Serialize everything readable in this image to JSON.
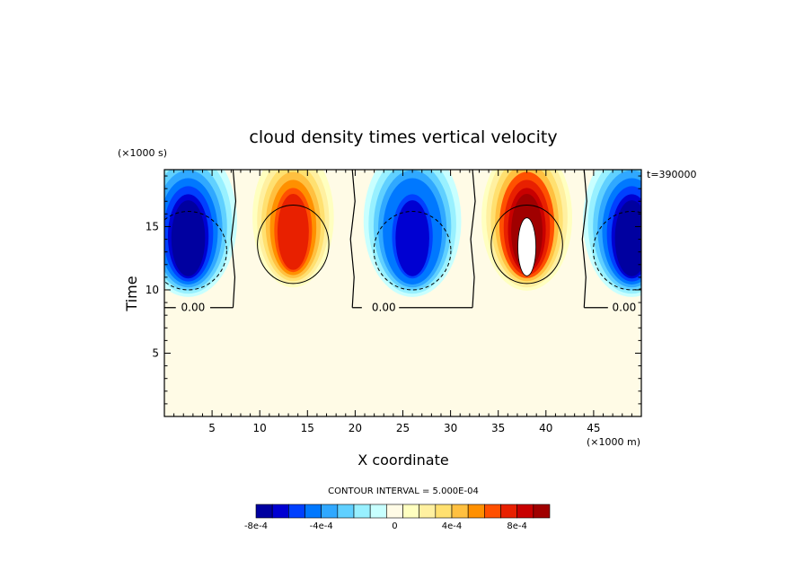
{
  "chart_data": {
    "type": "heatmap",
    "title": "cloud density times vertical velocity",
    "xlabel": "X coordinate",
    "ylabel": "Time",
    "x_unit": "(×1000 m)",
    "y_unit": "(×1000 s)",
    "time_stamp": "t=390000",
    "xlim": [
      0,
      50
    ],
    "ylim": [
      0,
      19.5
    ],
    "x_ticks": [
      5,
      10,
      15,
      20,
      25,
      30,
      35,
      40,
      45
    ],
    "y_ticks": [
      5,
      10,
      15
    ],
    "grid": false,
    "contour_interval_text": "CONTOUR INTERVAL = 5.000E-04",
    "contour_labels": [
      "0.00",
      "0.00",
      "0.00"
    ],
    "colorbar": {
      "tick_labels": [
        "-8e-4",
        "-4e-4",
        "0",
        "4e-4",
        "8e-4"
      ],
      "tick_values": [
        -0.0008,
        -0.0004,
        0,
        0.0004,
        0.0008
      ],
      "colors": [
        "#0000a0",
        "#0000d2",
        "#0040ff",
        "#0078ff",
        "#30a8ff",
        "#60d0ff",
        "#98f0ff",
        "#c8ffff",
        "#fffbe6",
        "#ffffc0",
        "#fff0a0",
        "#ffe070",
        "#ffc040",
        "#ff9000",
        "#ff5000",
        "#e82000",
        "#c80000",
        "#a00000"
      ]
    },
    "cells": [
      {
        "sign": "negative",
        "x_center": 2.5,
        "t_center": 12.5,
        "peak": -0.0009
      },
      {
        "sign": "positive",
        "x_center": 13.5,
        "t_center": 13.0,
        "peak": 0.0009
      },
      {
        "sign": "negative",
        "x_center": 26.0,
        "t_center": 12.5,
        "peak": -0.0008
      },
      {
        "sign": "positive",
        "x_center": 38.0,
        "t_center": 13.0,
        "peak": 0.0012
      },
      {
        "sign": "negative",
        "x_center": 49.0,
        "t_center": 12.5,
        "peak": -0.0009
      }
    ]
  }
}
